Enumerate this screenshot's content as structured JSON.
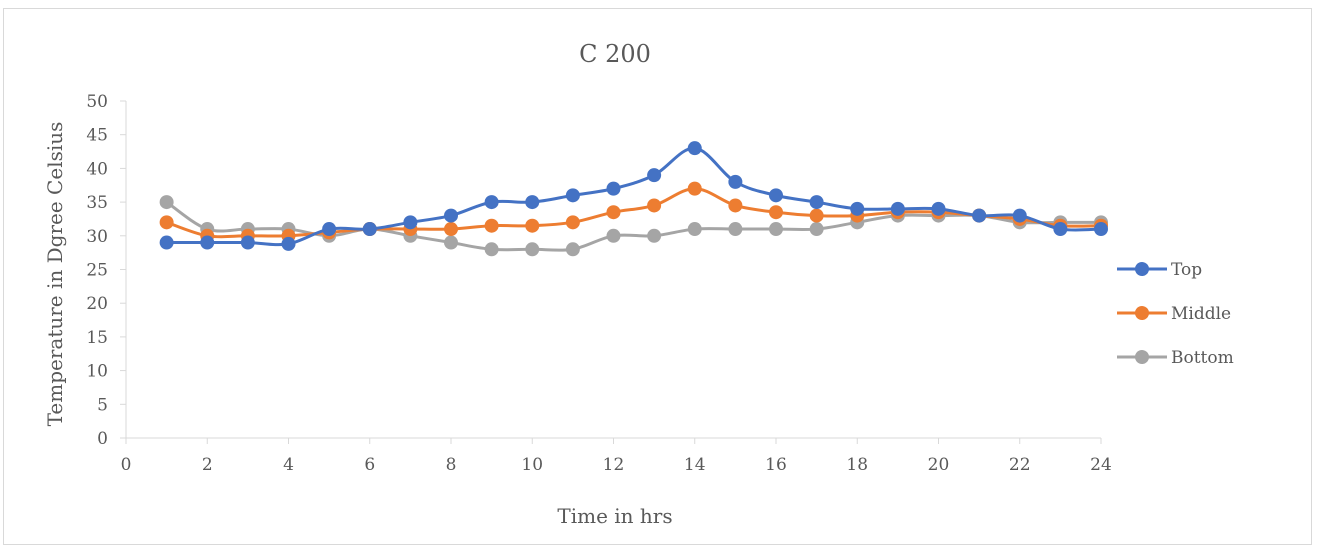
{
  "chart_data": {
    "type": "line",
    "title": "C 200",
    "xlabel": "Time in hrs",
    "ylabel": "Temperature in Dgree Celsius",
    "xlim": [
      0,
      24
    ],
    "ylim": [
      0,
      50
    ],
    "x_ticks": [
      0,
      2,
      4,
      6,
      8,
      10,
      12,
      14,
      16,
      18,
      20,
      22,
      24
    ],
    "y_ticks": [
      0,
      5,
      10,
      15,
      20,
      25,
      30,
      35,
      40,
      45,
      50
    ],
    "grid": false,
    "legend_position": "right",
    "x": [
      1,
      2,
      3,
      4,
      5,
      6,
      7,
      8,
      9,
      10,
      11,
      12,
      13,
      14,
      15,
      16,
      17,
      18,
      19,
      20,
      21,
      22,
      23,
      24
    ],
    "series": [
      {
        "name": "Top",
        "color": "#4472c4",
        "values": [
          29,
          29,
          29,
          28.8,
          31,
          31,
          32,
          33,
          35,
          35,
          36,
          37,
          39,
          43,
          38,
          36,
          35,
          34,
          34,
          34,
          33,
          33,
          31,
          31
        ]
      },
      {
        "name": "Middle",
        "color": "#ed7d31",
        "values": [
          32,
          30,
          30,
          30,
          30.5,
          31,
          31,
          31,
          31.5,
          31.5,
          32,
          33.5,
          34.5,
          37,
          34.5,
          33.5,
          33,
          33,
          33.5,
          33.5,
          33,
          32.5,
          31.5,
          31.5
        ]
      },
      {
        "name": "Bottom",
        "color": "#a5a5a5",
        "values": [
          35,
          31,
          31,
          31,
          30,
          31,
          30,
          29,
          28,
          28,
          28,
          30,
          30,
          31,
          31,
          31,
          31,
          32,
          33,
          33,
          33,
          32,
          32,
          32
        ]
      }
    ]
  }
}
